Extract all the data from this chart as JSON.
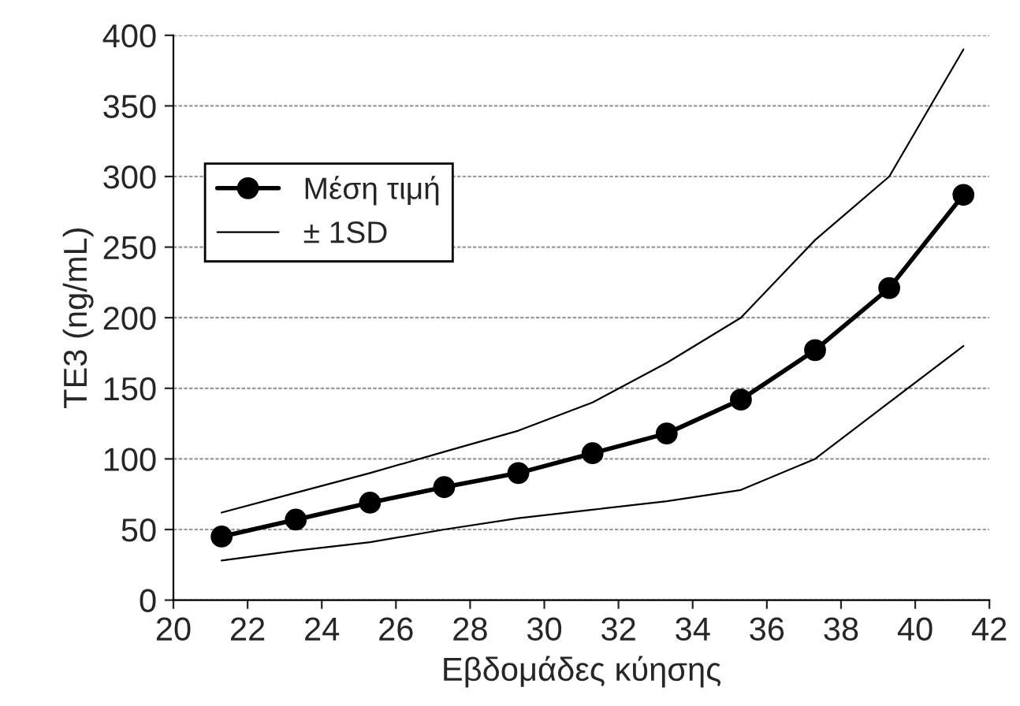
{
  "chart_data": {
    "type": "line",
    "xlabel": "Εβδομάδες κύησης",
    "ylabel": "TE3 (ng/mL)",
    "x": [
      21.3,
      23.3,
      25.3,
      27.3,
      29.3,
      31.3,
      33.3,
      35.3,
      37.3,
      39.3,
      41.3
    ],
    "series": [
      {
        "name": "Μέση τιμή",
        "color": "#000000",
        "values": [
          45,
          57,
          69,
          80,
          90,
          104,
          118,
          142,
          177,
          221,
          287
        ],
        "marker": "circle"
      },
      {
        "name": "± 1SD",
        "color": "#000000",
        "values": [
          62,
          76,
          90,
          105,
          120,
          140,
          168,
          200,
          255,
          300,
          390
        ],
        "marker": "none"
      },
      {
        "color": "#000000",
        "values": [
          28,
          35,
          41,
          50,
          58,
          64,
          70,
          78,
          100,
          140,
          180
        ],
        "marker": "none"
      }
    ],
    "xlim": [
      20,
      42
    ],
    "xticks": [
      20,
      22,
      24,
      26,
      28,
      30,
      32,
      34,
      36,
      38,
      40,
      42
    ],
    "ylim": [
      0,
      400
    ],
    "yticks": [
      0,
      50,
      100,
      150,
      200,
      250,
      300,
      350,
      400
    ],
    "grid": "y",
    "legend": "top left"
  }
}
